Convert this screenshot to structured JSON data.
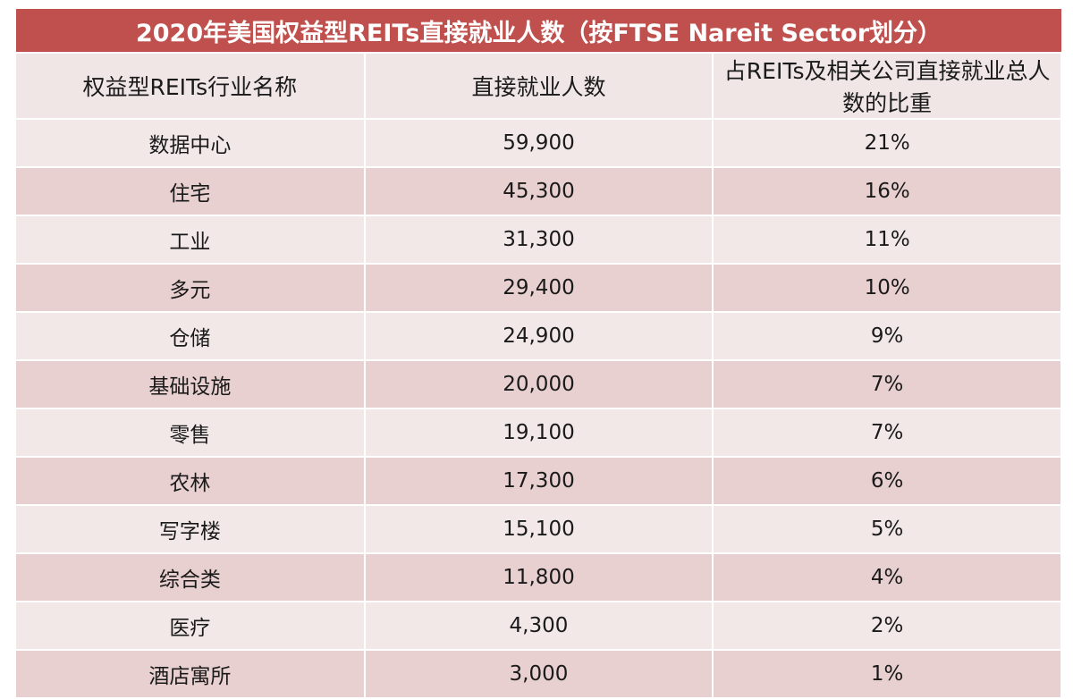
{
  "table": {
    "title": "2020年美国权益型REITs直接就业人数（按FTSE Nareit Sector划分）",
    "columns": [
      "权益型REITs行业名称",
      "直接就业人数",
      "占REITs及相关公司直接就业总人数的比重"
    ],
    "rows": [
      [
        "数据中心",
        "59,900",
        "21%"
      ],
      [
        "住宅",
        "45,300",
        "16%"
      ],
      [
        "工业",
        "31,300",
        "11%"
      ],
      [
        "多元",
        "29,400",
        "10%"
      ],
      [
        "仓储",
        "24,900",
        "9%"
      ],
      [
        "基础设施",
        "20,000",
        "7%"
      ],
      [
        "零售",
        "19,100",
        "7%"
      ],
      [
        "农林",
        "17,300",
        "6%"
      ],
      [
        "写字楼",
        "15,100",
        "5%"
      ],
      [
        "综合类",
        "11,800",
        "4%"
      ],
      [
        "医疗",
        "4,300",
        "2%"
      ],
      [
        "酒店寓所",
        "3,000",
        "1%"
      ]
    ]
  }
}
